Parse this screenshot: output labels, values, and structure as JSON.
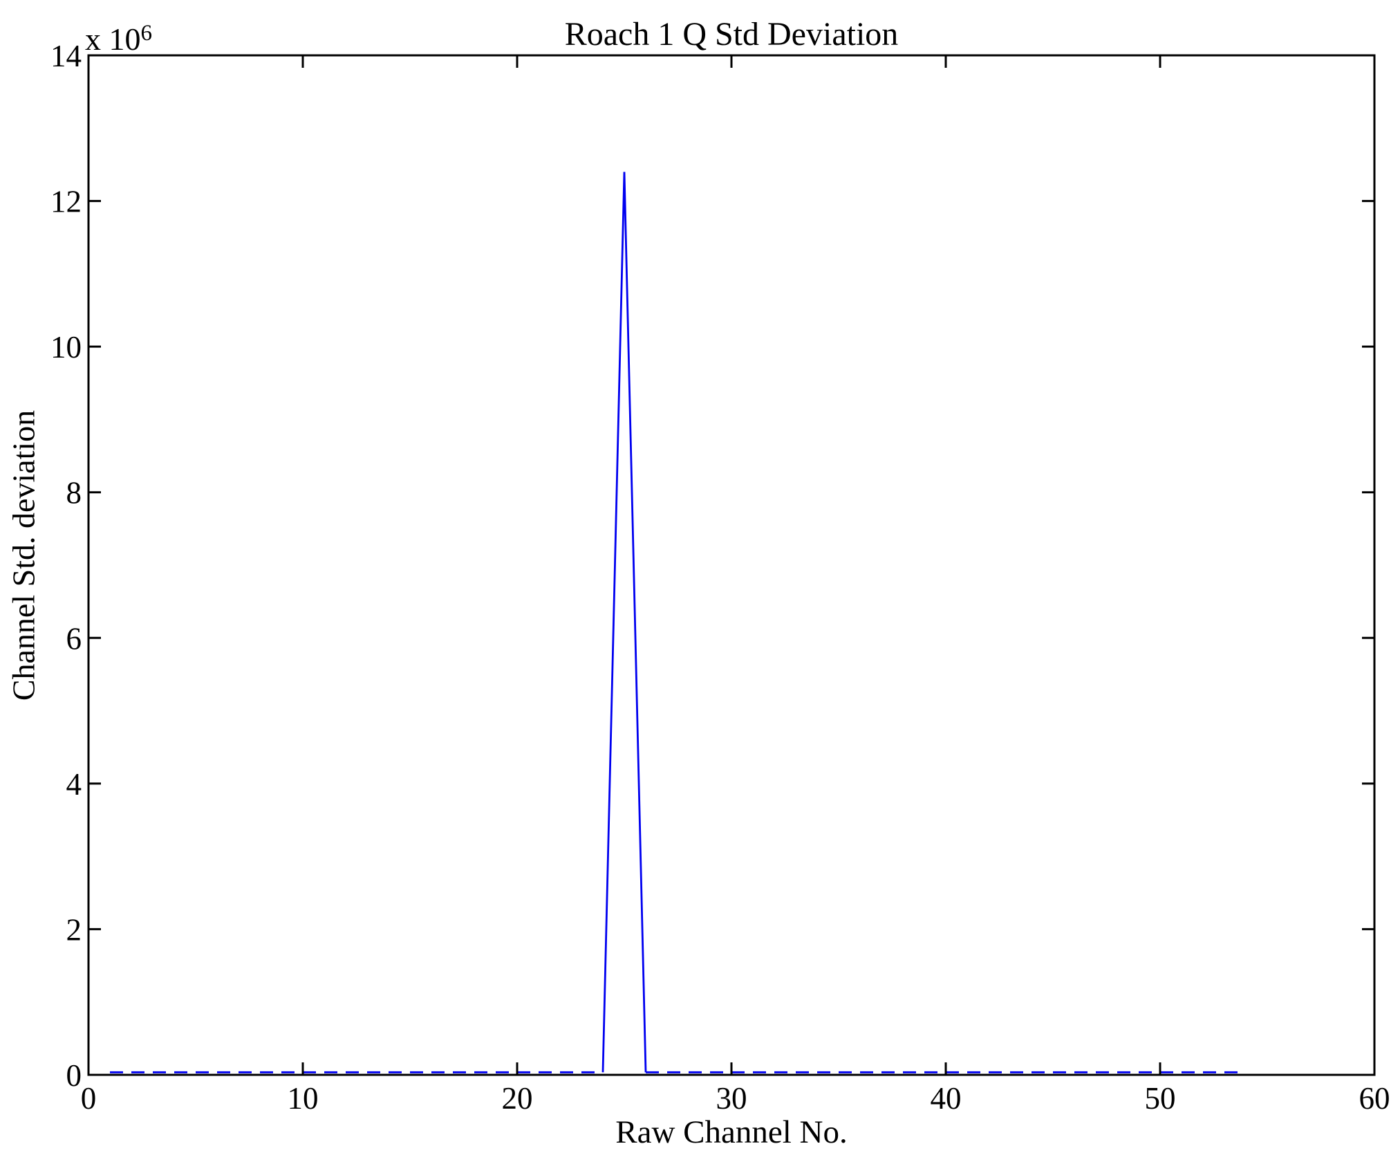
{
  "figure": {
    "background_color": "#ffffff",
    "axis_color": "#000000",
    "line_color": "#0000f0",
    "y_multiplier_prefix": "x 10",
    "y_multiplier_exponent": "6"
  },
  "chart_data": {
    "type": "line",
    "title": "Roach 1 Q Std Deviation",
    "xlabel": "Raw Channel No.",
    "ylabel": "Channel Std. deviation",
    "xlim": [
      0,
      60
    ],
    "ylim": [
      0,
      14000000
    ],
    "x_ticks": [
      0,
      10,
      20,
      30,
      40,
      50,
      60
    ],
    "y_ticks": [
      0,
      2,
      4,
      6,
      8,
      10,
      12,
      14
    ],
    "y_tick_scale": 1000000,
    "grid": false,
    "legend": null,
    "series_color": "#0000f0",
    "peak": {
      "channel": 25,
      "value": 12400000
    },
    "baseline_value_approx": 35000,
    "x": [
      1,
      2,
      3,
      4,
      5,
      6,
      7,
      8,
      9,
      10,
      11,
      12,
      13,
      14,
      15,
      16,
      17,
      18,
      19,
      20,
      21,
      22,
      23,
      24,
      25,
      26,
      27,
      28,
      29,
      30,
      31,
      32,
      33,
      34,
      35,
      36,
      37,
      38,
      39,
      40,
      41,
      42,
      43,
      44,
      45,
      46,
      47,
      48,
      49,
      50,
      51,
      52,
      53,
      54
    ],
    "values": [
      35000,
      35000,
      35000,
      35000,
      35000,
      35000,
      35000,
      35000,
      35000,
      35000,
      35000,
      35000,
      35000,
      35000,
      35000,
      35000,
      35000,
      35000,
      35000,
      35000,
      35000,
      35000,
      35000,
      35000,
      12400000,
      35000,
      35000,
      35000,
      35000,
      35000,
      35000,
      35000,
      35000,
      35000,
      35000,
      35000,
      35000,
      35000,
      35000,
      35000,
      35000,
      35000,
      35000,
      35000,
      35000,
      35000,
      35000,
      35000,
      35000,
      35000,
      35000,
      35000,
      35000,
      35000
    ]
  }
}
